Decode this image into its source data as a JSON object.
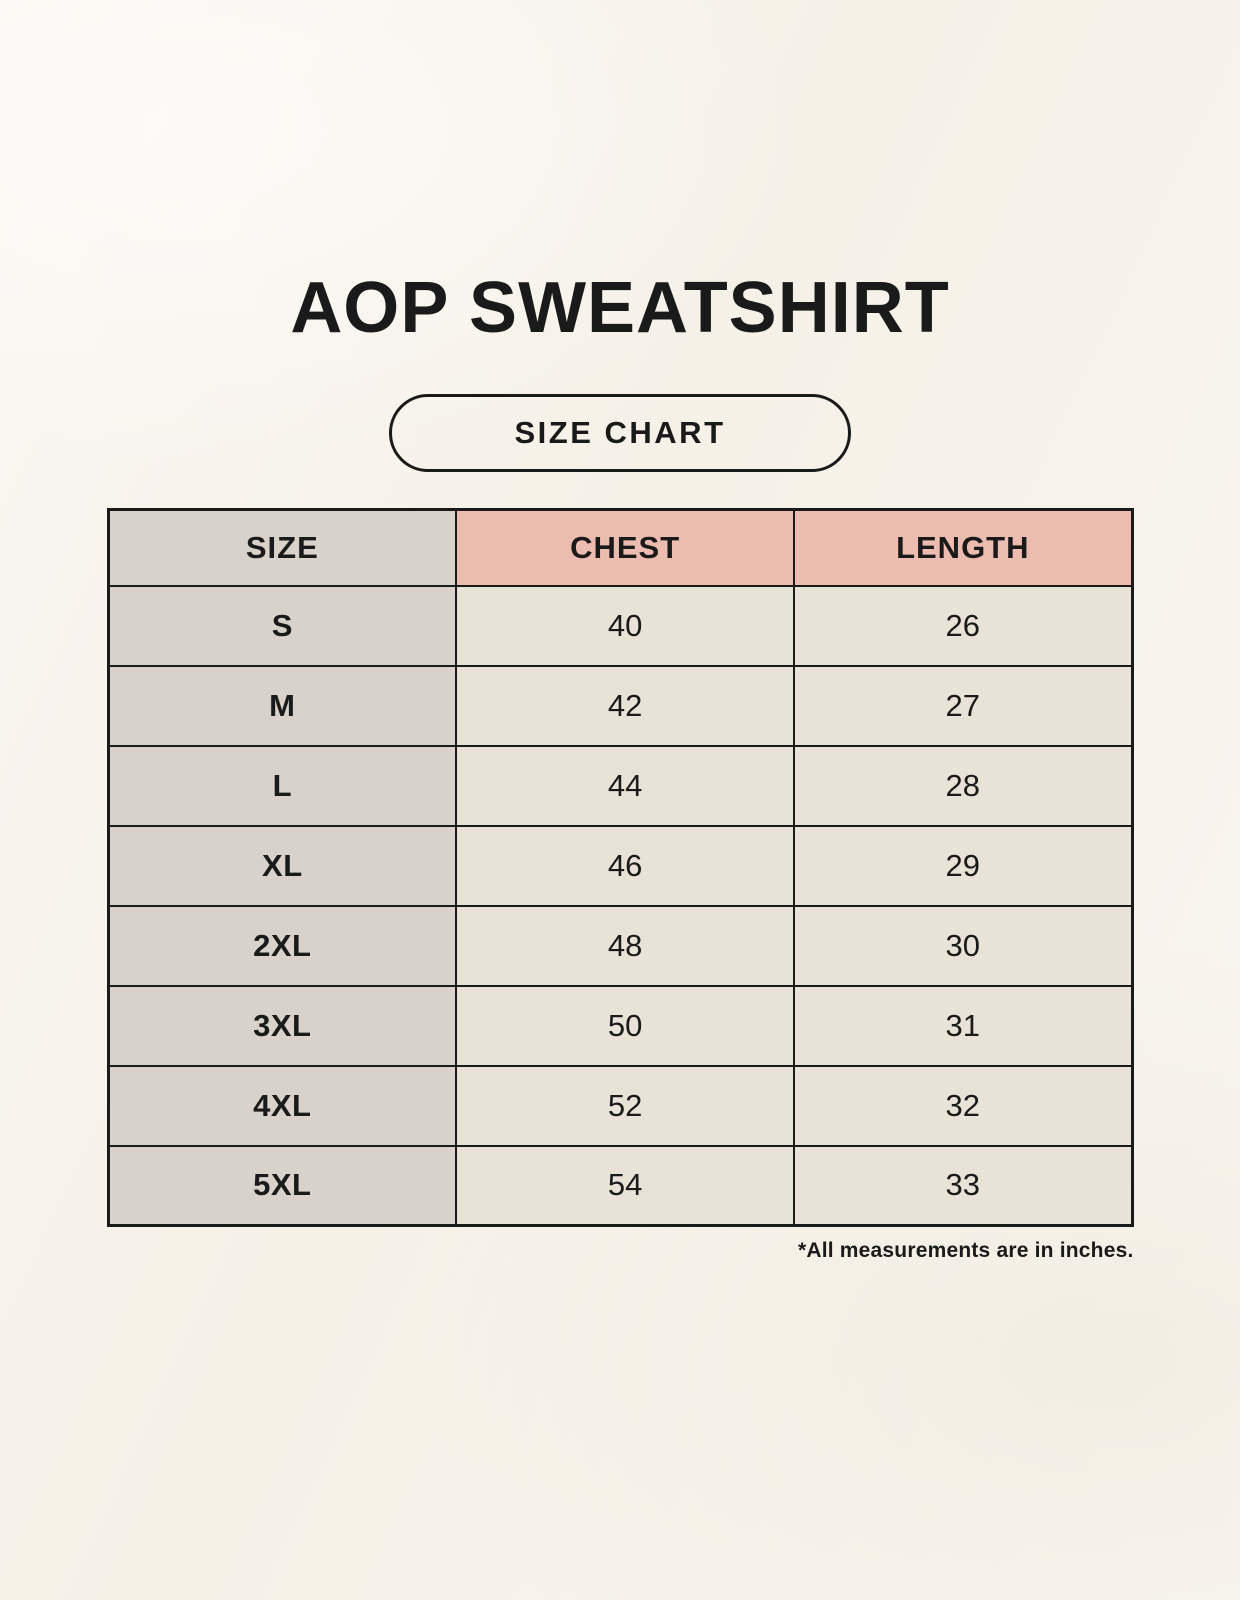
{
  "page": {
    "title": "AOP SWEATSHIRT",
    "badge_label": "SIZE CHART",
    "footnote": "*All measurements are in inches."
  },
  "chart_data": {
    "type": "table",
    "title": "AOP SWEATSHIRT",
    "subtitle": "SIZE CHART",
    "columns": [
      "SIZE",
      "CHEST",
      "LENGTH"
    ],
    "rows": [
      [
        "S",
        "40",
        "26"
      ],
      [
        "M",
        "42",
        "27"
      ],
      [
        "L",
        "44",
        "28"
      ],
      [
        "XL",
        "46",
        "29"
      ],
      [
        "2XL",
        "48",
        "30"
      ],
      [
        "3XL",
        "50",
        "31"
      ],
      [
        "4XL",
        "52",
        "32"
      ],
      [
        "5XL",
        "54",
        "33"
      ]
    ],
    "units": "inches",
    "note": "*All measurements are in inches."
  },
  "colors": {
    "background": "#f7f3ea",
    "size_column_bg": "#d9d2cb",
    "header_accent_bg": "#edbcb0",
    "data_cell_bg": "#e9e2d6",
    "border": "#1a1a1a",
    "text": "#1a1a1a"
  }
}
